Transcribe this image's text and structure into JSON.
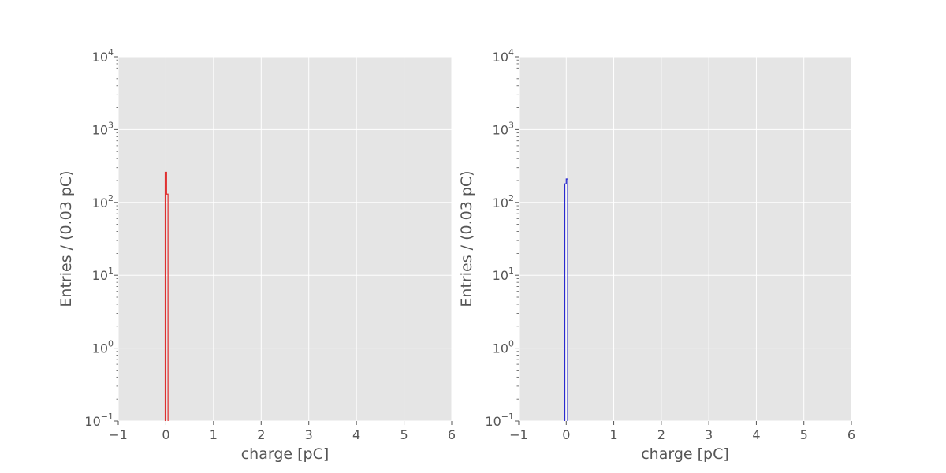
{
  "chart_data": [
    {
      "type": "histogram",
      "xlabel": "charge [pC]",
      "ylabel": "Entries / (0.03 pC)",
      "xlim": [
        -1,
        6
      ],
      "ylim": [
        0.1,
        10000
      ],
      "yscale": "log",
      "grid": true,
      "xticks": [
        -1,
        0,
        1,
        2,
        3,
        4,
        5,
        6
      ],
      "xtick_labels": [
        "−1",
        "0",
        "1",
        "2",
        "3",
        "4",
        "5",
        "6"
      ],
      "yticks": [
        {
          "base": "10",
          "exp": "−1",
          "value": 0.1
        },
        {
          "base": "10",
          "exp": "0",
          "value": 1
        },
        {
          "base": "10",
          "exp": "1",
          "value": 10
        },
        {
          "base": "10",
          "exp": "2",
          "value": 100
        },
        {
          "base": "10",
          "exp": "3",
          "value": 1000
        },
        {
          "base": "10",
          "exp": "4",
          "value": 10000
        }
      ],
      "line_color": "#e03030",
      "bins": [
        {
          "x0": -0.015,
          "x1": 0.015,
          "count": 260
        },
        {
          "x0": 0.015,
          "x1": 0.045,
          "count": 130
        }
      ]
    },
    {
      "type": "histogram",
      "xlabel": "charge [pC]",
      "ylabel": "Entries / (0.03 pC)",
      "xlim": [
        -1,
        6
      ],
      "ylim": [
        0.1,
        10000
      ],
      "yscale": "log",
      "grid": true,
      "xticks": [
        -1,
        0,
        1,
        2,
        3,
        4,
        5,
        6
      ],
      "xtick_labels": [
        "−1",
        "0",
        "1",
        "2",
        "3",
        "4",
        "5",
        "6"
      ],
      "yticks": [
        {
          "base": "10",
          "exp": "−1",
          "value": 0.1
        },
        {
          "base": "10",
          "exp": "0",
          "value": 1
        },
        {
          "base": "10",
          "exp": "1",
          "value": 10
        },
        {
          "base": "10",
          "exp": "2",
          "value": 100
        },
        {
          "base": "10",
          "exp": "3",
          "value": 1000
        },
        {
          "base": "10",
          "exp": "4",
          "value": 10000
        }
      ],
      "line_color": "#2a2ad0",
      "bins": [
        {
          "x0": -0.03,
          "x1": 0.0,
          "count": 180
        },
        {
          "x0": 0.0,
          "x1": 0.03,
          "count": 210
        }
      ]
    }
  ]
}
